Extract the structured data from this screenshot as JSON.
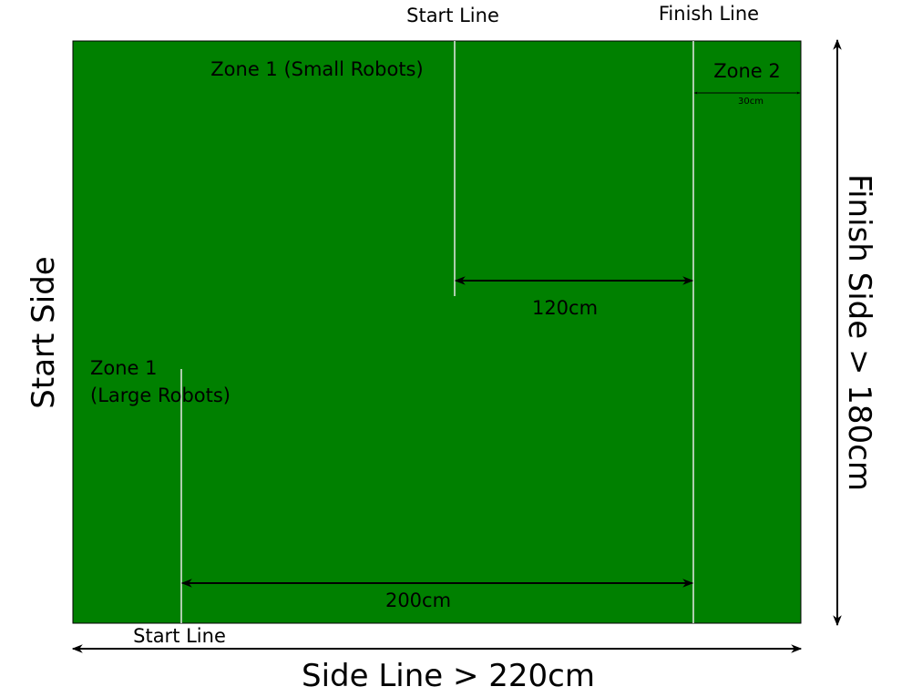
{
  "labels": {
    "start_line_top": "Start Line",
    "finish_line_top": "Finish Line",
    "zone1_small": "Zone 1 (Small Robots)",
    "zone2": "Zone 2",
    "zone2_width": "30cm",
    "dim_120": "120cm",
    "zone1_large_line1": "Zone 1",
    "zone1_large_line2": "(Large Robots)",
    "dim_200": "200cm",
    "start_line_bottom": "Start Line",
    "side_line": "Side Line > 220cm",
    "start_side": "Start Side",
    "finish_side": "Finish Side > 180cm"
  },
  "colors": {
    "field": "#008000",
    "field_border": "#000000",
    "lines": "#e8e8e8",
    "arrows": "#000000"
  }
}
